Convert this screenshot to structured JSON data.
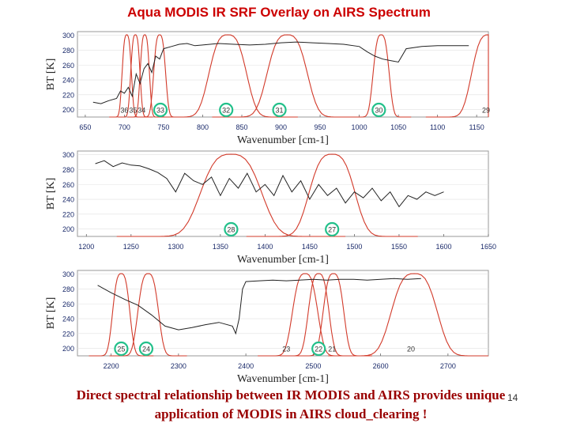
{
  "slide": {
    "title": "Aqua MODIS IR SRF Overlay on AIRS Spectrum",
    "caption_line1": "Direct spectral relationship between IR MODIS and AIRS provides unique",
    "caption_line2": "application of MODIS in AIRS cloud_clearing !",
    "page_number": "14"
  },
  "colors": {
    "spectrum": "#222222",
    "srf": "#d23a2a",
    "circle": "#22c08a",
    "axis_text": "#1a2a6a",
    "grid": "#e0e0e0"
  },
  "chart_data": [
    {
      "type": "line",
      "title": "",
      "xlabel": "Wavenumber [cm-1]",
      "ylabel": "BT [K]",
      "xlim": [
        640,
        1165
      ],
      "ylim": [
        190,
        305
      ],
      "x_ticks": [
        "650",
        "700",
        "750",
        "800",
        "850",
        "900",
        "950",
        "1000",
        "1050",
        "1100",
        "1150"
      ],
      "y_ticks": [
        "200",
        "220",
        "240",
        "260",
        "280",
        "300"
      ],
      "spectrum_x": [
        660,
        670,
        680,
        690,
        695,
        700,
        705,
        710,
        715,
        720,
        725,
        730,
        735,
        740,
        745,
        750,
        760,
        770,
        780,
        790,
        800,
        820,
        840,
        860,
        880,
        900,
        920,
        940,
        960,
        980,
        1000,
        1010,
        1020,
        1030,
        1040,
        1050,
        1060,
        1080,
        1100,
        1120,
        1140
      ],
      "spectrum_y": [
        210,
        208,
        212,
        215,
        225,
        222,
        230,
        218,
        248,
        235,
        255,
        262,
        250,
        272,
        268,
        282,
        285,
        288,
        289,
        286,
        287,
        289,
        288,
        287,
        288,
        290,
        291,
        290,
        289,
        288,
        285,
        278,
        272,
        268,
        266,
        264,
        282,
        285,
        286,
        286,
        286
      ],
      "srf_bands": [
        {
          "band": "36",
          "center": 703,
          "width": 7,
          "label_x": 700,
          "circled": false
        },
        {
          "band": "35",
          "center": 714,
          "width": 7,
          "label_x": 711,
          "circled": false
        },
        {
          "band": "34",
          "center": 726,
          "width": 7,
          "label_x": 722,
          "circled": false
        },
        {
          "band": "33",
          "center": 745,
          "width": 9,
          "label_x": 746,
          "circled": true
        },
        {
          "band": "32",
          "center": 832,
          "width": 28,
          "label_x": 830,
          "circled": true
        },
        {
          "band": "31",
          "center": 908,
          "width": 30,
          "label_x": 898,
          "circled": true
        },
        {
          "band": "30",
          "center": 1028,
          "width": 12,
          "label_x": 1025,
          "circled": true
        },
        {
          "band": "29",
          "center": 1165,
          "width": 25,
          "label_x": 1162,
          "circled": false
        }
      ]
    },
    {
      "type": "line",
      "title": "",
      "xlabel": "Wavenumber [cm-1]",
      "ylabel": "BT [K]",
      "xlim": [
        1190,
        1650
      ],
      "ylim": [
        190,
        305
      ],
      "x_ticks": [
        "1200",
        "1250",
        "1300",
        "1350",
        "1400",
        "1450",
        "1500",
        "1550",
        "1600",
        "1650"
      ],
      "y_ticks": [
        "200",
        "220",
        "240",
        "260",
        "280",
        "300"
      ],
      "spectrum_x": [
        1210,
        1220,
        1230,
        1240,
        1250,
        1260,
        1270,
        1280,
        1290,
        1300,
        1310,
        1320,
        1330,
        1340,
        1350,
        1360,
        1370,
        1380,
        1390,
        1400,
        1410,
        1420,
        1430,
        1440,
        1450,
        1460,
        1470,
        1480,
        1490,
        1500,
        1510,
        1520,
        1530,
        1540,
        1550,
        1560,
        1570,
        1580,
        1590,
        1600
      ],
      "spectrum_y": [
        288,
        292,
        284,
        289,
        286,
        285,
        281,
        276,
        268,
        250,
        275,
        265,
        260,
        270,
        245,
        268,
        255,
        275,
        250,
        260,
        245,
        272,
        250,
        265,
        240,
        260,
        245,
        255,
        235,
        250,
        242,
        255,
        238,
        250,
        230,
        245,
        240,
        250,
        245,
        250
      ],
      "srf_bands": [
        {
          "band": "28",
          "center": 1362,
          "width": 40,
          "label_x": 1362,
          "circled": true
        },
        {
          "band": "27",
          "center": 1475,
          "width": 30,
          "label_x": 1475,
          "circled": true
        }
      ]
    },
    {
      "type": "line",
      "title": "",
      "xlabel": "Wavenumber [cm-1]",
      "ylabel": "BT [K]",
      "xlim": [
        2150,
        2760
      ],
      "ylim": [
        190,
        305
      ],
      "x_ticks": [
        "2200",
        "2300",
        "2400",
        "2500",
        "2600",
        "2700"
      ],
      "y_ticks": [
        "200",
        "220",
        "240",
        "260",
        "280",
        "300"
      ],
      "spectrum_x": [
        2180,
        2200,
        2220,
        2240,
        2260,
        2280,
        2300,
        2320,
        2340,
        2360,
        2380,
        2385,
        2390,
        2395,
        2400,
        2420,
        2440,
        2460,
        2480,
        2500,
        2520,
        2540,
        2560,
        2580,
        2600,
        2620,
        2640,
        2660
      ],
      "spectrum_y": [
        285,
        275,
        266,
        258,
        245,
        230,
        225,
        228,
        232,
        235,
        230,
        220,
        240,
        280,
        290,
        291,
        292,
        291,
        292,
        293,
        292,
        293,
        293,
        292,
        293,
        294,
        293,
        294
      ],
      "srf_bands": [
        {
          "band": "25",
          "center": 2215,
          "width": 15,
          "label_x": 2215,
          "circled": true
        },
        {
          "band": "24",
          "center": 2255,
          "width": 18,
          "label_x": 2252,
          "circled": true
        },
        {
          "band": "23",
          "center": 2488,
          "width": 22,
          "label_x": 2460,
          "circled": false
        },
        {
          "band": "22",
          "center": 2508,
          "width": 18,
          "label_x": 2508,
          "circled": true
        },
        {
          "band": "21",
          "center": 2530,
          "width": 18,
          "label_x": 2528,
          "circled": false
        },
        {
          "band": "20",
          "center": 2650,
          "width": 40,
          "label_x": 2645,
          "circled": false
        }
      ]
    }
  ]
}
